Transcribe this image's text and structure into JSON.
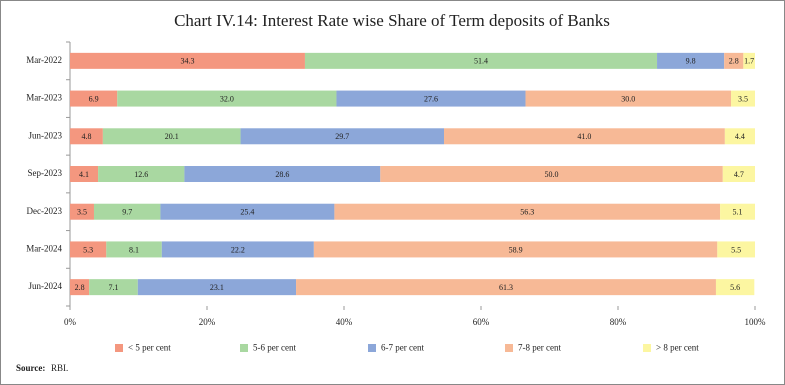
{
  "chart_data": {
    "type": "stacked-barh",
    "title": "Chart IV.14: Interest Rate wise Share of Term deposits of Banks",
    "categories": [
      "Mar-2022",
      "Mar-2023",
      "Jun-2023",
      "Sep-2023",
      "Dec-2023",
      "Mar-2024",
      "Jun-2024"
    ],
    "series": [
      {
        "name": "< 5 per cent",
        "color": "#f4977f",
        "values": [
          34.3,
          6.9,
          4.8,
          4.1,
          3.5,
          5.3,
          2.8
        ],
        "value_labels": [
          "34.3",
          "6.9",
          "4.8",
          "4.1",
          "3.5",
          "5.3",
          "2.8"
        ]
      },
      {
        "name": "5-6 per cent",
        "color": "#a9d8a1",
        "values": [
          51.4,
          32.0,
          20.1,
          12.6,
          9.7,
          8.1,
          7.1
        ],
        "value_labels": [
          "51.4",
          "32.0",
          "20.1",
          "12.6",
          "9.7",
          "8.1",
          "7.1"
        ]
      },
      {
        "name": "6-7 per cent",
        "color": "#8ca7d9",
        "values": [
          9.8,
          27.6,
          29.7,
          28.6,
          25.4,
          22.2,
          23.1
        ],
        "value_labels": [
          "9.8",
          "27.6",
          "29.7",
          "28.6",
          "25.4",
          "22.2",
          "23.1"
        ]
      },
      {
        "name": "7-8 per cent",
        "color": "#f7b996",
        "values": [
          2.8,
          30.0,
          41.0,
          50.0,
          56.3,
          58.9,
          61.3
        ],
        "value_labels": [
          "2.8",
          "30.0",
          "41.0",
          "50.0",
          "56.3",
          "58.9",
          "61.3"
        ]
      },
      {
        "name": "> 8 per cent",
        "color": "#fcf6a1",
        "values": [
          1.7,
          3.5,
          4.4,
          4.7,
          5.1,
          5.5,
          5.6
        ],
        "value_labels": [
          "1.7",
          "3.5",
          "4.4",
          "4.7",
          "5.1",
          "5.5",
          "5.6"
        ]
      }
    ],
    "xlim": [
      0,
      100
    ],
    "xticks": [
      {
        "value": 0,
        "label": "0%"
      },
      {
        "value": 20,
        "label": "20%"
      },
      {
        "value": 40,
        "label": "40%"
      },
      {
        "value": 60,
        "label": "60%"
      },
      {
        "value": 80,
        "label": "80%"
      },
      {
        "value": 100,
        "label": "100%"
      }
    ],
    "legend": "bottom",
    "source_label": "Source:",
    "source_text": "RBI."
  }
}
